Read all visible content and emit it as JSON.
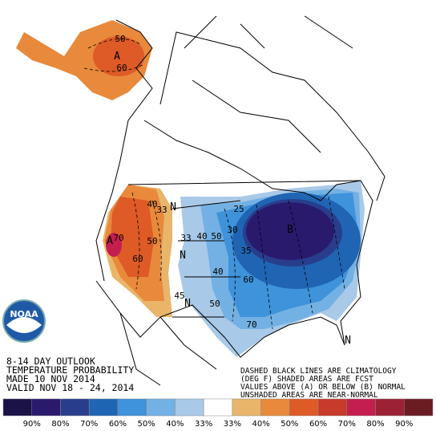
{
  "header": {
    "lines": [
      "8-14 DAY OUTLOOK",
      "TEMPERATURE PROBABILITY",
      "MADE  10 NOV 2014",
      "VALID  NOV 18 - 24, 2014"
    ]
  },
  "note": {
    "lines": [
      "DASHED BLACK LINES ARE CLIMATOLOGY",
      "(DEG F) SHADED AREAS ARE FCST",
      "VALUES ABOVE (A) OR BELOW (B) NORMAL",
      "UNSHADED AREAS ARE NEAR-NORMAL"
    ]
  },
  "logo": {
    "text": "NOAA"
  },
  "map_labels": [
    "50",
    "60",
    "A",
    "40",
    "33",
    "N",
    "50",
    "A",
    "70",
    "60",
    "33",
    "40",
    "50",
    "N",
    "N",
    "25",
    "B",
    "35",
    "30",
    "40",
    "45",
    "50",
    "60",
    "70",
    "N"
  ],
  "legend": {
    "colors": [
      "#1b1248",
      "#2a1a6e",
      "#283e8c",
      "#1f65b4",
      "#3e93da",
      "#73b1e4",
      "#a9c9e8",
      "#ffffff",
      "#e9b56a",
      "#e8893b",
      "#de5a26",
      "#c83a2a",
      "#c41e4e",
      "#9a2234",
      "#6a1c22"
    ],
    "labels": [
      "90%",
      "80%",
      "70%",
      "60%",
      "50%",
      "40%",
      "33%",
      "33%",
      "40%",
      "50%",
      "60%",
      "70%",
      "80%",
      "90%"
    ]
  }
}
